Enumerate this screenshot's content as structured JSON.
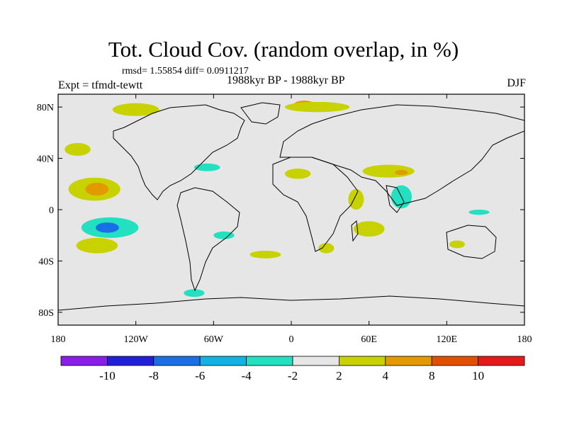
{
  "header": {
    "title": "Tot. Cloud Cov. (random overlap, in %)",
    "stats": "rmsd= 1.55854 diff= 0.0911217",
    "experiment": "Expt = tfmdt-tewtt",
    "period": "1988kyr BP - 1988kyr BP",
    "season": "DJF"
  },
  "axes": {
    "lat_ticks": [
      {
        "value": 80,
        "label": "80N"
      },
      {
        "value": 40,
        "label": "40N"
      },
      {
        "value": 0,
        "label": "0"
      },
      {
        "value": -40,
        "label": "40S"
      },
      {
        "value": -80,
        "label": "80S"
      }
    ],
    "lon_ticks": [
      {
        "value": -180,
        "label": "180"
      },
      {
        "value": -120,
        "label": "120W"
      },
      {
        "value": -60,
        "label": "60W"
      },
      {
        "value": 0,
        "label": "0"
      },
      {
        "value": 60,
        "label": "60E"
      },
      {
        "value": 120,
        "label": "120E"
      },
      {
        "value": 180,
        "label": "180"
      }
    ],
    "lon_range": [
      -180,
      180
    ],
    "lat_range": [
      -90,
      90
    ]
  },
  "colorbar": {
    "colors": [
      "#8a1ee8",
      "#2020d8",
      "#1a6ee6",
      "#12b2e2",
      "#22e0c0",
      "#e6e6e6",
      "#c8d200",
      "#e29a00",
      "#e05000",
      "#e41a1a"
    ],
    "labels": [
      "-10",
      "-8",
      "-6",
      "-4",
      "-2",
      "2",
      "4",
      "8",
      "10"
    ]
  },
  "map": {
    "background": "#e6e6e6",
    "coast_color": "#000000",
    "anomaly_regions": [
      {
        "name": "n-pacific-positive",
        "level": 6,
        "lon": -152,
        "lat": 16,
        "rx": 20,
        "ry": 9
      },
      {
        "name": "n-pacific-core",
        "level": 7,
        "lon": -150,
        "lat": 16,
        "rx": 9,
        "ry": 5
      },
      {
        "name": "s-pacific-negative",
        "level": 4,
        "lon": -140,
        "lat": -14,
        "rx": 22,
        "ry": 8
      },
      {
        "name": "s-pacific-core",
        "level": 2,
        "lon": -142,
        "lat": -14,
        "rx": 9,
        "ry": 4
      },
      {
        "name": "s-pacific-positive",
        "level": 6,
        "lon": -150,
        "lat": -28,
        "rx": 16,
        "ry": 6
      },
      {
        "name": "n-atl-negative",
        "level": 4,
        "lon": -65,
        "lat": 33,
        "rx": 10,
        "ry": 3
      },
      {
        "name": "mid-pacific-positive",
        "level": 6,
        "lon": -165,
        "lat": 47,
        "rx": 10,
        "ry": 5
      },
      {
        "name": "arctic-positive-1",
        "level": 6,
        "lon": -120,
        "lat": 78,
        "rx": 18,
        "ry": 5
      },
      {
        "name": "arctic-orange",
        "level": 7,
        "lon": 10,
        "lat": 82,
        "rx": 8,
        "ry": 3
      },
      {
        "name": "arctic-positive-2",
        "level": 6,
        "lon": 20,
        "lat": 80,
        "rx": 25,
        "ry": 4
      },
      {
        "name": "sahara-positive",
        "level": 6,
        "lon": 5,
        "lat": 28,
        "rx": 10,
        "ry": 4
      },
      {
        "name": "arabia-positive",
        "level": 6,
        "lon": 75,
        "lat": 30,
        "rx": 20,
        "ry": 5
      },
      {
        "name": "arabia-orange",
        "level": 7,
        "lon": 85,
        "lat": 29,
        "rx": 5,
        "ry": 2
      },
      {
        "name": "india-negative",
        "level": 4,
        "lon": 85,
        "lat": 10,
        "rx": 8,
        "ry": 9
      },
      {
        "name": "e-africa-positive",
        "level": 6,
        "lon": 50,
        "lat": 8,
        "rx": 6,
        "ry": 8
      },
      {
        "name": "indian-ocean-positive",
        "level": 6,
        "lon": 60,
        "lat": -15,
        "rx": 12,
        "ry": 6
      },
      {
        "name": "s-atl-negative",
        "level": 4,
        "lon": -52,
        "lat": -20,
        "rx": 8,
        "ry": 3
      },
      {
        "name": "s-africa-positive",
        "level": 6,
        "lon": 27,
        "lat": -30,
        "rx": 6,
        "ry": 4
      },
      {
        "name": "australia-positive",
        "level": 6,
        "lon": 128,
        "lat": -27,
        "rx": 6,
        "ry": 3
      },
      {
        "name": "w-pacific-negative",
        "level": 4,
        "lon": 145,
        "lat": -2,
        "rx": 8,
        "ry": 2
      },
      {
        "name": "s-ocean-negative",
        "level": 4,
        "lon": -75,
        "lat": -65,
        "rx": 8,
        "ry": 3
      },
      {
        "name": "s-ocean-positive",
        "level": 6,
        "lon": -20,
        "lat": -35,
        "rx": 12,
        "ry": 3
      }
    ]
  }
}
